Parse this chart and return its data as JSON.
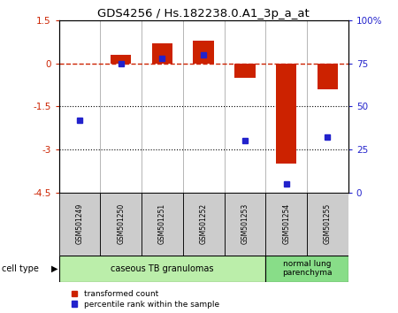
{
  "title": "GDS4256 / Hs.182238.0.A1_3p_a_at",
  "samples": [
    "GSM501249",
    "GSM501250",
    "GSM501251",
    "GSM501252",
    "GSM501253",
    "GSM501254",
    "GSM501255"
  ],
  "red_values": [
    0.0,
    0.3,
    0.7,
    0.8,
    -0.5,
    -3.5,
    -0.9
  ],
  "blue_values_percentile": [
    42,
    75,
    78,
    80,
    30,
    5,
    32
  ],
  "ylim_left": [
    -4.5,
    1.5
  ],
  "ylim_right": [
    0,
    100
  ],
  "group1_samples": [
    0,
    1,
    2,
    3,
    4
  ],
  "group2_samples": [
    5,
    6
  ],
  "group1_label": "caseous TB granulomas",
  "group2_label": "normal lung\nparenchyma",
  "cell_type_label": "cell type",
  "legend_red": "transformed count",
  "legend_blue": "percentile rank within the sample",
  "bar_color_red": "#cc2200",
  "bar_color_blue": "#2222cc",
  "dashed_zero_color": "#cc2200",
  "dotted_line_color": "#000000",
  "sample_box_color": "#cccccc",
  "group1_color": "#bbeeaa",
  "group2_color": "#88dd88",
  "bar_width": 0.5,
  "blue_marker_size": 5
}
